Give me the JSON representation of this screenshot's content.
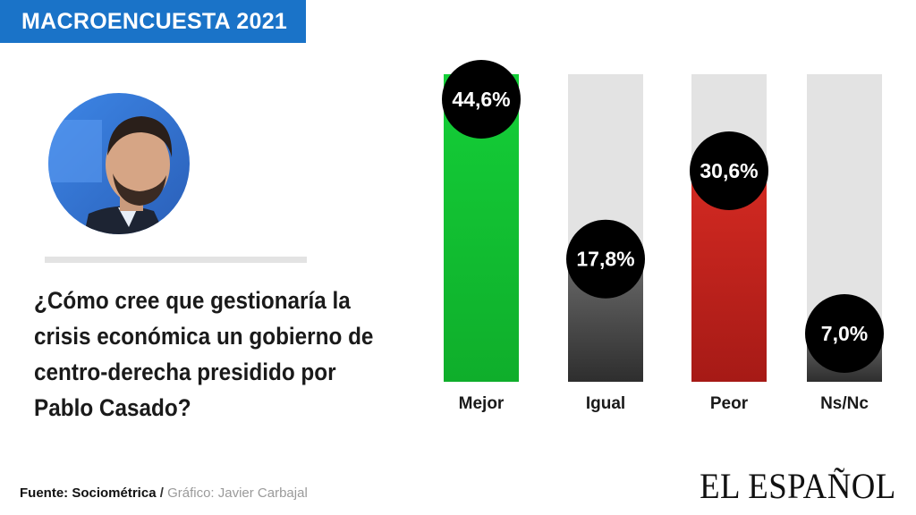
{
  "header": {
    "banner": "MACROENCUESTA 2021"
  },
  "question": "¿Cómo cree que gestionaría la crisis económica un gobierno de centro-derecha presidido por Pablo Casado?",
  "footer": {
    "source_label": "Fuente: Sociométrica",
    "separator": "/",
    "credit": "Gráfico: Javier Carbajal"
  },
  "logo": "EL ESPAÑOL",
  "colors": {
    "banner": "#1a73c8",
    "track": "#e3e3e3",
    "mejor": "#11c433",
    "igual": "#4a4a4a",
    "peor": "#c0201c",
    "nsnc": "#4a4a4a",
    "bubble": "#000000"
  },
  "chart_data": {
    "type": "bar",
    "categories": [
      "Mejor",
      "Igual",
      "Peor",
      "Ns/Nc"
    ],
    "values": [
      44.6,
      17.8,
      30.6,
      7.0
    ],
    "value_labels": [
      "44,6%",
      "17,8%",
      "30,6%",
      "7,0%"
    ],
    "ylim": [
      0,
      44.6
    ],
    "bar_colors": [
      "#11c433",
      "#4a4a4a",
      "#c0201c",
      "#4a4a4a"
    ],
    "grid": false,
    "legend": "none"
  }
}
